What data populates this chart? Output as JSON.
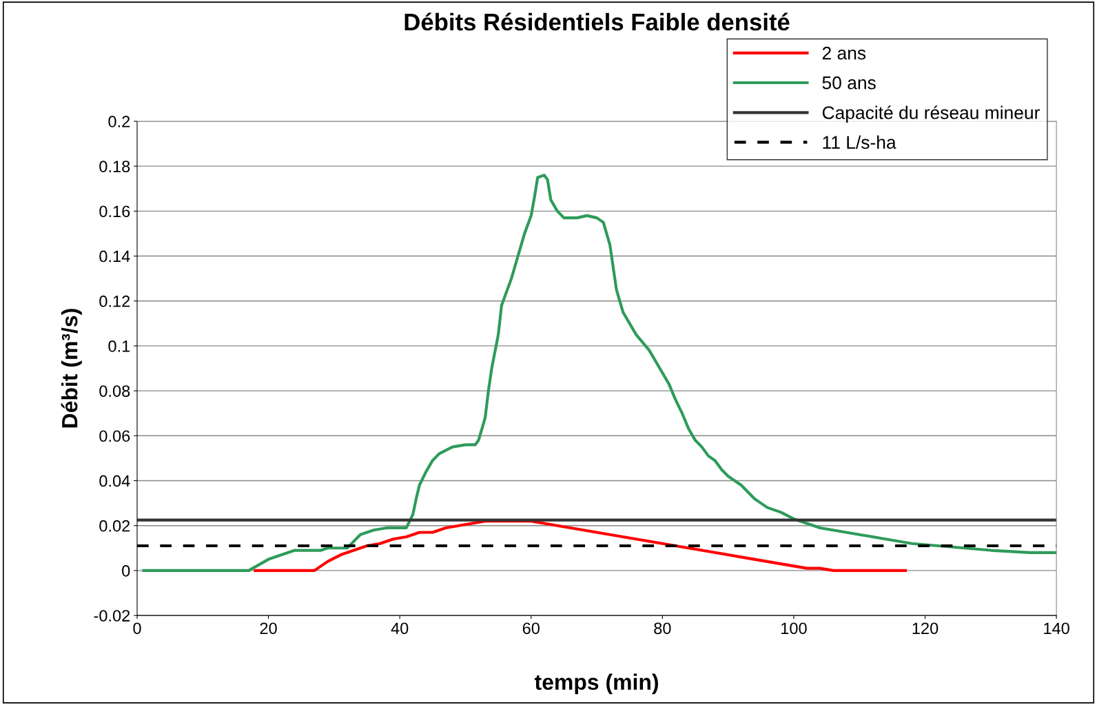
{
  "chart_data": {
    "type": "line",
    "title": "Débits Résidentiels Faible densité",
    "xlabel": "temps (min)",
    "ylabel": "Débit (m³/s)",
    "xlim": [
      0,
      140
    ],
    "xticks": [
      0,
      20,
      40,
      60,
      80,
      100,
      120,
      140
    ],
    "ylim": [
      -0.02,
      0.2
    ],
    "yticks": [
      -0.02,
      0,
      0.02,
      0.04,
      0.06,
      0.08,
      0.1,
      0.12,
      0.14,
      0.16,
      0.18,
      0.2
    ],
    "grid": "y",
    "legend": "top right",
    "series": [
      {
        "name": "2 ans",
        "color": "#ff0000",
        "x": [
          18,
          27,
          29,
          31,
          33,
          35,
          37,
          39,
          41,
          43,
          45,
          47,
          49,
          51,
          53,
          60,
          62,
          64,
          66,
          68,
          70,
          72,
          74,
          78,
          80,
          84,
          86,
          88,
          90,
          92,
          94,
          96,
          98,
          100,
          102,
          104,
          106,
          117
        ],
        "values": [
          0,
          0,
          0.004,
          0.007,
          0.009,
          0.011,
          0.012,
          0.014,
          0.015,
          0.017,
          0.017,
          0.019,
          0.02,
          0.021,
          0.022,
          0.022,
          0.021,
          0.02,
          0.019,
          0.018,
          0.017,
          0.016,
          0.015,
          0.013,
          0.012,
          0.01,
          0.009,
          0.008,
          0.007,
          0.006,
          0.005,
          0.004,
          0.003,
          0.002,
          0.001,
          0.001,
          0,
          0
        ]
      },
      {
        "name": "50 ans",
        "color": "#2e9b5a",
        "x": [
          1,
          17,
          20,
          22,
          24,
          28,
          29,
          32,
          33,
          34,
          36,
          38,
          41,
          42,
          42.5,
          43,
          44,
          45,
          46,
          48,
          50,
          51.5,
          52,
          53,
          53.5,
          54,
          55,
          55.5,
          57,
          58,
          59,
          60,
          60.5,
          61,
          62,
          62.5,
          63,
          64,
          65,
          67,
          68.5,
          70,
          71,
          72,
          73,
          74,
          76,
          78,
          80,
          81,
          82,
          83,
          84,
          85,
          86,
          87,
          88,
          89,
          90,
          91,
          92,
          93,
          94,
          95,
          96,
          98,
          100,
          102,
          104,
          108,
          110,
          114,
          116,
          118,
          122,
          126,
          130,
          136,
          140
        ],
        "values": [
          0,
          0,
          0.005,
          0.007,
          0.009,
          0.009,
          0.01,
          0.01,
          0.013,
          0.016,
          0.018,
          0.019,
          0.019,
          0.025,
          0.032,
          0.038,
          0.044,
          0.049,
          0.052,
          0.055,
          0.056,
          0.056,
          0.058,
          0.068,
          0.08,
          0.09,
          0.105,
          0.118,
          0.13,
          0.14,
          0.15,
          0.158,
          0.166,
          0.175,
          0.176,
          0.174,
          0.165,
          0.16,
          0.157,
          0.157,
          0.158,
          0.157,
          0.155,
          0.145,
          0.125,
          0.115,
          0.105,
          0.098,
          0.088,
          0.083,
          0.076,
          0.07,
          0.063,
          0.058,
          0.055,
          0.051,
          0.049,
          0.045,
          0.042,
          0.04,
          0.038,
          0.035,
          0.032,
          0.03,
          0.028,
          0.026,
          0.023,
          0.021,
          0.019,
          0.017,
          0.016,
          0.014,
          0.013,
          0.012,
          0.011,
          0.01,
          0.009,
          0.008,
          0.008
        ]
      },
      {
        "name": "Capacité du réseau mineur",
        "color": "#333333",
        "x": [
          0,
          140
        ],
        "values": [
          0.0225,
          0.0225
        ]
      },
      {
        "name": "11 L/s-ha",
        "color": "#000000",
        "line_style": "dashed",
        "x": [
          0,
          140
        ],
        "values": [
          0.011,
          0.011
        ]
      }
    ]
  }
}
